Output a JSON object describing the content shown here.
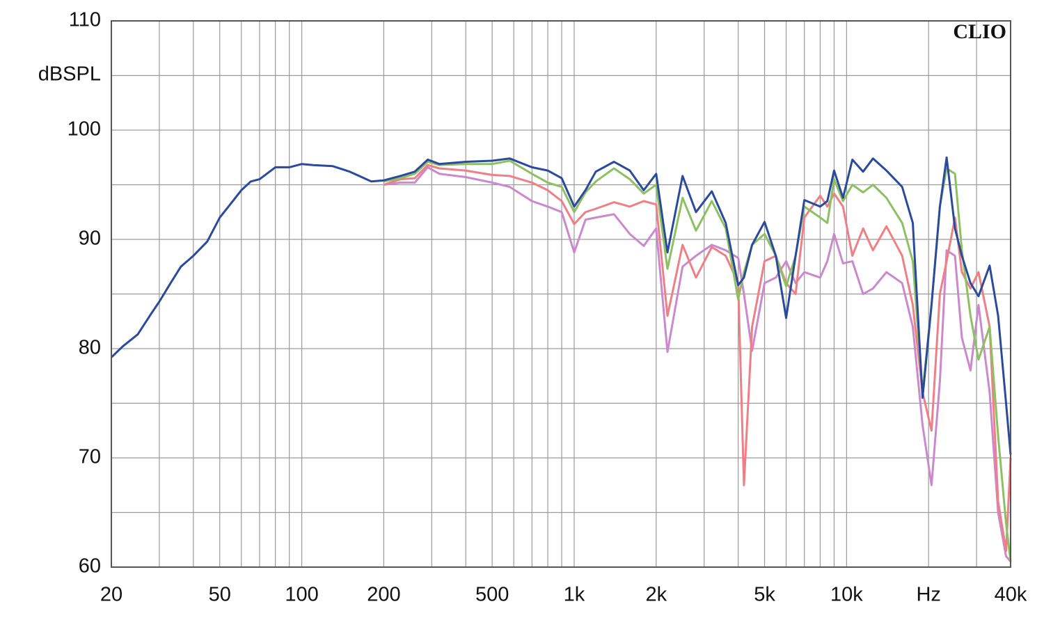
{
  "chart_data": {
    "type": "line",
    "ylabel": "dBSPL",
    "annotation": "CLIO",
    "xscale": "log",
    "grid": true,
    "xlim": [
      20,
      40000
    ],
    "ylim": [
      60,
      110
    ],
    "xticks": [
      20,
      50,
      100,
      200,
      500,
      {
        "value": 1000,
        "label": "1k"
      },
      {
        "value": 2000,
        "label": "2k"
      },
      {
        "value": 5000,
        "label": "5k"
      },
      {
        "value": 10000,
        "label": "10k"
      },
      {
        "value": 20000,
        "label": "Hz"
      },
      {
        "value": 40000,
        "label": "40k"
      }
    ],
    "yticks": [
      60,
      70,
      80,
      90,
      100,
      110
    ],
    "x_grid": [
      20,
      30,
      40,
      50,
      60,
      70,
      80,
      90,
      100,
      200,
      300,
      400,
      500,
      600,
      700,
      800,
      900,
      1000,
      2000,
      3000,
      4000,
      5000,
      6000,
      7000,
      8000,
      9000,
      10000,
      20000,
      30000,
      40000
    ],
    "y_grid": [
      60,
      65,
      70,
      75,
      80,
      85,
      90,
      95,
      100,
      105,
      110
    ],
    "x": [
      20,
      22,
      25,
      28,
      30,
      33,
      36,
      40,
      45,
      50,
      55,
      60,
      65,
      70,
      80,
      90,
      100,
      110,
      130,
      150,
      180,
      200,
      230,
      260,
      290,
      320,
      400,
      500,
      580,
      700,
      800,
      900,
      1000,
      1100,
      1200,
      1400,
      1600,
      1800,
      2000,
      2200,
      2500,
      2800,
      3200,
      3600,
      4000,
      4200,
      4500,
      5000,
      5500,
      6000,
      6500,
      7000,
      8000,
      8500,
      9000,
      9700,
      10500,
      11500,
      12500,
      14000,
      16000,
      17500,
      19000,
      20500,
      22000,
      23300,
      25000,
      26500,
      28500,
      30500,
      33500,
      36000,
      38500,
      40000
    ],
    "series": [
      {
        "color": "#cc88cc",
        "values": [
          null,
          null,
          null,
          null,
          null,
          null,
          null,
          null,
          null,
          null,
          null,
          null,
          null,
          null,
          null,
          null,
          null,
          null,
          null,
          null,
          null,
          95,
          95.2,
          95.2,
          96.6,
          96,
          95.7,
          95.2,
          94.8,
          93.5,
          93,
          92.5,
          88.8,
          91.8,
          92,
          92.3,
          90.5,
          89.4,
          91,
          79.7,
          87.5,
          88.5,
          89.5,
          89,
          88.3,
          85,
          79.8,
          86,
          86.5,
          88,
          86,
          87,
          86.5,
          88,
          90.5,
          87.8,
          88,
          85,
          85.5,
          87,
          86,
          82,
          73,
          67.5,
          77,
          89,
          88.5,
          81,
          78,
          84,
          76,
          65,
          61,
          60.5
        ]
      },
      {
        "color": "#ef7f85",
        "values": [
          null,
          null,
          null,
          null,
          null,
          null,
          null,
          null,
          null,
          null,
          null,
          null,
          null,
          null,
          null,
          null,
          null,
          null,
          null,
          null,
          null,
          95,
          95.5,
          95.6,
          96.8,
          96.5,
          96.3,
          95.9,
          95.8,
          95.2,
          94.5,
          93.5,
          91.4,
          92.5,
          92.8,
          93.4,
          93,
          93.5,
          93.2,
          83,
          89.5,
          86.5,
          89.3,
          88.5,
          86,
          67.5,
          82,
          88,
          88.5,
          86,
          85,
          92,
          94,
          93,
          94.2,
          93,
          88.5,
          91,
          89,
          91.2,
          88.5,
          84,
          76,
          72.5,
          85,
          88,
          92,
          87,
          85.5,
          87,
          82,
          66,
          61.5,
          70
        ]
      },
      {
        "color": "#8cc063",
        "values": [
          null,
          null,
          null,
          null,
          null,
          null,
          null,
          null,
          null,
          null,
          null,
          null,
          null,
          null,
          null,
          null,
          null,
          null,
          null,
          null,
          null,
          95.3,
          95.6,
          96,
          97.1,
          96.8,
          96.9,
          96.9,
          97.2,
          96,
          95.2,
          94.8,
          92.5,
          94.3,
          95.3,
          96.5,
          95.5,
          94.2,
          95,
          87.3,
          93.8,
          90.8,
          93.5,
          91,
          84.5,
          87,
          89.5,
          90.5,
          88.5,
          85.7,
          88.5,
          93,
          92,
          91.5,
          95.5,
          93.5,
          95,
          94.3,
          95,
          93.8,
          91.5,
          88,
          76,
          84,
          93,
          96.5,
          96,
          89,
          83,
          79,
          82,
          72,
          64,
          60.5
        ]
      },
      {
        "color": "#2b4a9c",
        "values": [
          79.2,
          80.2,
          81.3,
          83.2,
          84.3,
          86,
          87.5,
          88.5,
          89.8,
          92,
          93.3,
          94.5,
          95.3,
          95.5,
          96.6,
          96.6,
          96.9,
          96.8,
          96.7,
          96.2,
          95.3,
          95.4,
          95.8,
          96.2,
          97.3,
          96.9,
          97.1,
          97.2,
          97.4,
          96.6,
          96.3,
          95.6,
          93,
          94.5,
          96.2,
          97.1,
          96.3,
          94.5,
          96,
          88.8,
          95.8,
          92.5,
          94.4,
          91.5,
          85.8,
          86.5,
          89.5,
          91.6,
          88.5,
          82.8,
          88.5,
          93.6,
          93,
          93.5,
          96.3,
          93.8,
          97.3,
          96.2,
          97.4,
          96.3,
          94.8,
          91.5,
          75.5,
          84,
          93,
          97.5,
          91,
          88.5,
          86,
          84.8,
          87.6,
          83,
          75,
          70.3
        ]
      }
    ]
  }
}
